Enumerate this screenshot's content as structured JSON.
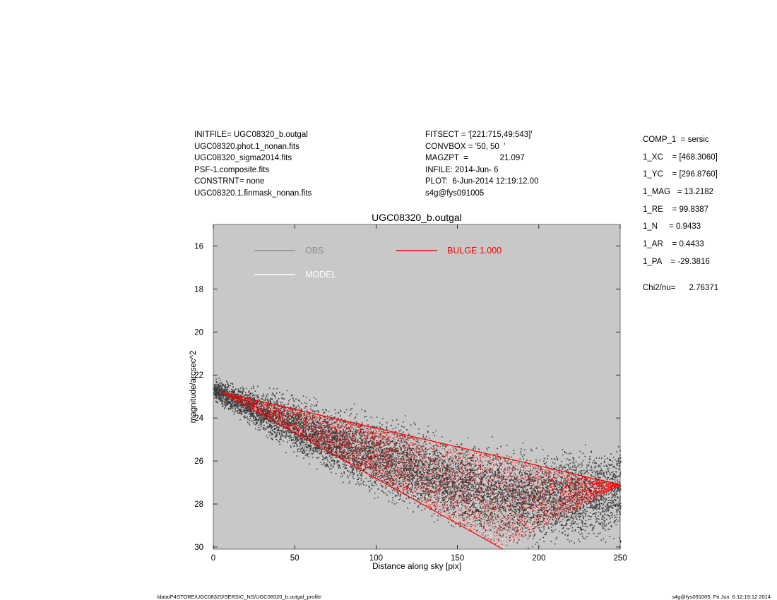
{
  "header": {
    "left": [
      "INITFILE= UGC08320_b.outgal",
      "UGC08320.phot.1_nonan.fits",
      "UGC08320_sigma2014.fits",
      "PSF-1.composite.fits",
      "CONSTRNT= none",
      "UGC08320.1.finmask_nonan.fits"
    ],
    "middle": [
      "FITSECT = '[221:715,49:543]'",
      "CONVBOX = '50, 50  '",
      "MAGZPT  =              21.097",
      "INFILE: 2014-Jun- 6",
      "PLOT:  6-Jun-2014 12:19:12.00",
      "s4g@fys091005"
    ]
  },
  "params": [
    "COMP_1  = sersic",
    "1_XC    = [468.3060]",
    "1_YC    = [296.8760]",
    "1_MAG   = 13.2182",
    "1_RE    = 99.8387",
    "1_N     = 0.9433",
    "1_AR    = 0.4433",
    "1_PA    = -29.3816"
  ],
  "chi2": "Chi2/nu=      2.76371",
  "footer": {
    "left": "/data/P4STORE/UGC08320/SERSIC_NS/UGC08320_b.outgal_profile",
    "right": "s4g@fys091005  Fri Jun  6 12:19:12 2014"
  },
  "colors": {
    "plot_bg": "#c8c8c8",
    "obs": "#3c3c3c",
    "obs_legend": "#8c8c8c",
    "model": "#ffffff",
    "bulge": "#ff0000"
  },
  "chart_data": {
    "type": "scatter",
    "title": "UGC08320_b.outgal",
    "xlabel": "Distance along sky [pix]",
    "ylabel": "magnitude/arcsec^2",
    "xlim": [
      0,
      250
    ],
    "ylim": [
      30.1,
      15.0
    ],
    "y_inverted": true,
    "xticks": [
      0,
      50,
      100,
      150,
      200,
      250
    ],
    "yticks": [
      16,
      18,
      20,
      22,
      24,
      26,
      28,
      30
    ],
    "grid": false,
    "legend": [
      {
        "name": "OBS",
        "color": "#8c8c8c"
      },
      {
        "name": "MODEL",
        "color": "#ffffff"
      },
      {
        "name": "BULGE  1.000",
        "color": "#ff0000"
      }
    ],
    "series": [
      {
        "name": "OBS",
        "description": "dense point cloud",
        "upper_envelope": {
          "x": [
            0,
            50,
            100,
            150,
            200,
            225,
            250
          ],
          "y": [
            22.0,
            22.5,
            23.3,
            24.4,
            24.9,
            24.7,
            24.5
          ]
        },
        "lower_envelope": {
          "x": [
            0,
            50,
            100,
            150,
            175,
            200,
            250
          ],
          "y": [
            23.3,
            26.0,
            28.0,
            29.5,
            30.1,
            30.1,
            30.1
          ]
        }
      },
      {
        "name": "BULGE  1.000",
        "description": "model wedge between two edges",
        "upper_edge": {
          "x": [
            5,
            250
          ],
          "y": [
            22.8,
            27.1
          ]
        },
        "lower_edge": {
          "x": [
            5,
            178
          ],
          "y": [
            22.8,
            30.1
          ]
        },
        "right_edge": {
          "x": [
            178,
            250
          ],
          "y": [
            30.1,
            27.1
          ]
        }
      }
    ]
  }
}
